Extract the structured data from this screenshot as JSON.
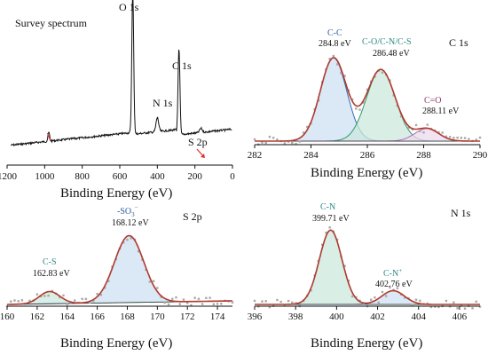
{
  "colors": {
    "envelope": "#b03a2e",
    "data_points": "#a8a8a8",
    "baseline": "#333333",
    "survey_line": "#111111",
    "cc_fill": "#cfe0f2",
    "cc_line": "#2f6db3",
    "co_fill": "#cce8dc",
    "co_line": "#2e9a6a",
    "c_o_fill": "#ecd9ec",
    "c_o_line": "#b46ab8",
    "label_blue": "#2d5f9c",
    "label_teal": "#2c8a84",
    "label_purple": "#8a3b6b",
    "arrow": "#e03030"
  },
  "chart_data": [
    {
      "id": "survey",
      "type": "line",
      "title": "Survey spectrum",
      "xlabel": "Binding Energy (eV)",
      "ylabel": "",
      "x_reversed": true,
      "xlim": [
        1200,
        0
      ],
      "xticks": [
        "1200",
        "1000",
        "800",
        "600",
        "400",
        "200",
        "0"
      ],
      "peaks": [
        {
          "label": "O 1s",
          "x": 531,
          "height": 1.0
        },
        {
          "label": "C 1s",
          "x": 285,
          "height": 0.62
        },
        {
          "label": "N 1s",
          "x": 400,
          "height": 0.1
        },
        {
          "label": "S 2p",
          "x": 168,
          "height": 0.03
        }
      ]
    },
    {
      "id": "c1s",
      "type": "line",
      "title": "C 1s",
      "xlabel": "Binding Energy (eV)",
      "ylabel": "",
      "xlim": [
        282,
        290
      ],
      "xticks": [
        "282",
        "284",
        "286",
        "288",
        "290"
      ],
      "components": [
        {
          "name": "C-C",
          "energy_label": "284.8 eV",
          "center": 284.8,
          "height": 0.86,
          "fwhm": 1.1
        },
        {
          "name": "C-O/C-N/C-S",
          "energy_label": "286.48 eV",
          "center": 286.48,
          "height": 0.74,
          "fwhm": 1.2
        },
        {
          "name": "C=O",
          "energy_label": "288.11 eV",
          "center": 288.11,
          "height": 0.13,
          "fwhm": 1.0
        }
      ]
    },
    {
      "id": "s2p",
      "type": "line",
      "title": "S 2p",
      "xlabel": "Binding Energy (eV)",
      "ylabel": "",
      "xlim": [
        160,
        175
      ],
      "xticks": [
        "160",
        "162",
        "164",
        "166",
        "168",
        "170",
        "172",
        "174"
      ],
      "components": [
        {
          "name": "C-S",
          "energy_label": "162.83 eV",
          "center": 162.83,
          "height": 0.17,
          "fwhm": 1.6
        },
        {
          "name": "-SO",
          "name_sub": "3",
          "name_sup": "−",
          "energy_label": "168.12 eV",
          "center": 168.12,
          "height": 0.93,
          "fwhm": 2.3
        }
      ]
    },
    {
      "id": "n1s",
      "type": "line",
      "title": "N 1s",
      "xlabel": "Binding Energy (eV)",
      "ylabel": "",
      "xlim": [
        396,
        407
      ],
      "xticks": [
        "396",
        "398",
        "400",
        "402",
        "404",
        "406"
      ],
      "components": [
        {
          "name": "C-N",
          "energy_label": "399.71 eV",
          "center": 399.71,
          "height": 0.92,
          "fwhm": 1.3
        },
        {
          "name": "C-N",
          "name_sup": "+",
          "energy_label": "402.76 eV",
          "center": 402.76,
          "height": 0.17,
          "fwhm": 1.3
        }
      ]
    }
  ]
}
